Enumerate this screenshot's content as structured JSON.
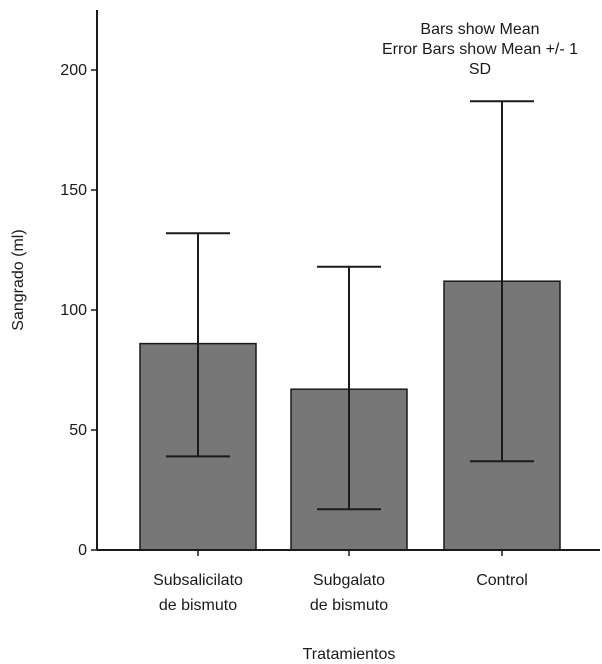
{
  "chart_data": {
    "type": "bar",
    "categories": [
      [
        "Subsalicilato",
        "de bismuto"
      ],
      [
        "Subgalato",
        "de bismuto"
      ],
      [
        "Control"
      ]
    ],
    "values": [
      86,
      67,
      112
    ],
    "error_low": [
      39,
      17,
      37
    ],
    "error_high": [
      132,
      118,
      187
    ],
    "xlabel": "Tratamientos",
    "ylabel": "Sangrado (ml)",
    "ylim": [
      0,
      225
    ],
    "yticks": [
      0,
      50,
      100,
      150,
      200
    ],
    "annotation": [
      "Bars show Mean",
      "Error Bars show Mean +/- 1",
      "SD"
    ],
    "grid": false,
    "bar_color": "#777777",
    "bar_edge_color": "#1a1a1a"
  }
}
